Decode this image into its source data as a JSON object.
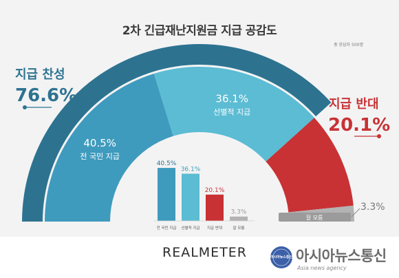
{
  "title": "2차 긴급재난지원금 지급 공감도",
  "note": "총 응답자 500명",
  "colors": {
    "support": "#2d7390",
    "universal": "#3f9bbd",
    "selective": "#5bbcd3",
    "oppose": "#c83234",
    "dont_know": "#b3b3b3"
  },
  "chart_data": [
    {
      "type": "pie",
      "title": "2차 긴급재난지원금 지급 공감도",
      "groups": [
        {
          "label": "지급 찬성",
          "value": 76.6,
          "display": "76.6%"
        },
        {
          "label": "지급 반대",
          "value": 20.1,
          "display": "20.1%"
        }
      ],
      "slices": [
        {
          "label": "전 국민 지급",
          "value": 40.5,
          "display": "40.5%"
        },
        {
          "label": "선별적 지급",
          "value": 36.1,
          "display": "36.1%"
        },
        {
          "label": "지급 반대",
          "value": 20.1,
          "display": "20.1%"
        },
        {
          "label": "잘 모름",
          "value": 3.3,
          "display": "3.3%"
        }
      ]
    },
    {
      "type": "bar",
      "categories": [
        "전 국민 지급",
        "선별적 지급",
        "지급 반대",
        "잘 모름"
      ],
      "values": [
        40.5,
        36.1,
        20.1,
        3.3
      ],
      "labels": [
        "40.5%",
        "36.1%",
        "20.1%",
        "3.3%"
      ]
    }
  ],
  "footer": {
    "brand": "REALMETER",
    "seal_text": "아시아뉴스통신",
    "agency_name": "아시아뉴스통신",
    "agency_sub": "Asia news agency"
  }
}
